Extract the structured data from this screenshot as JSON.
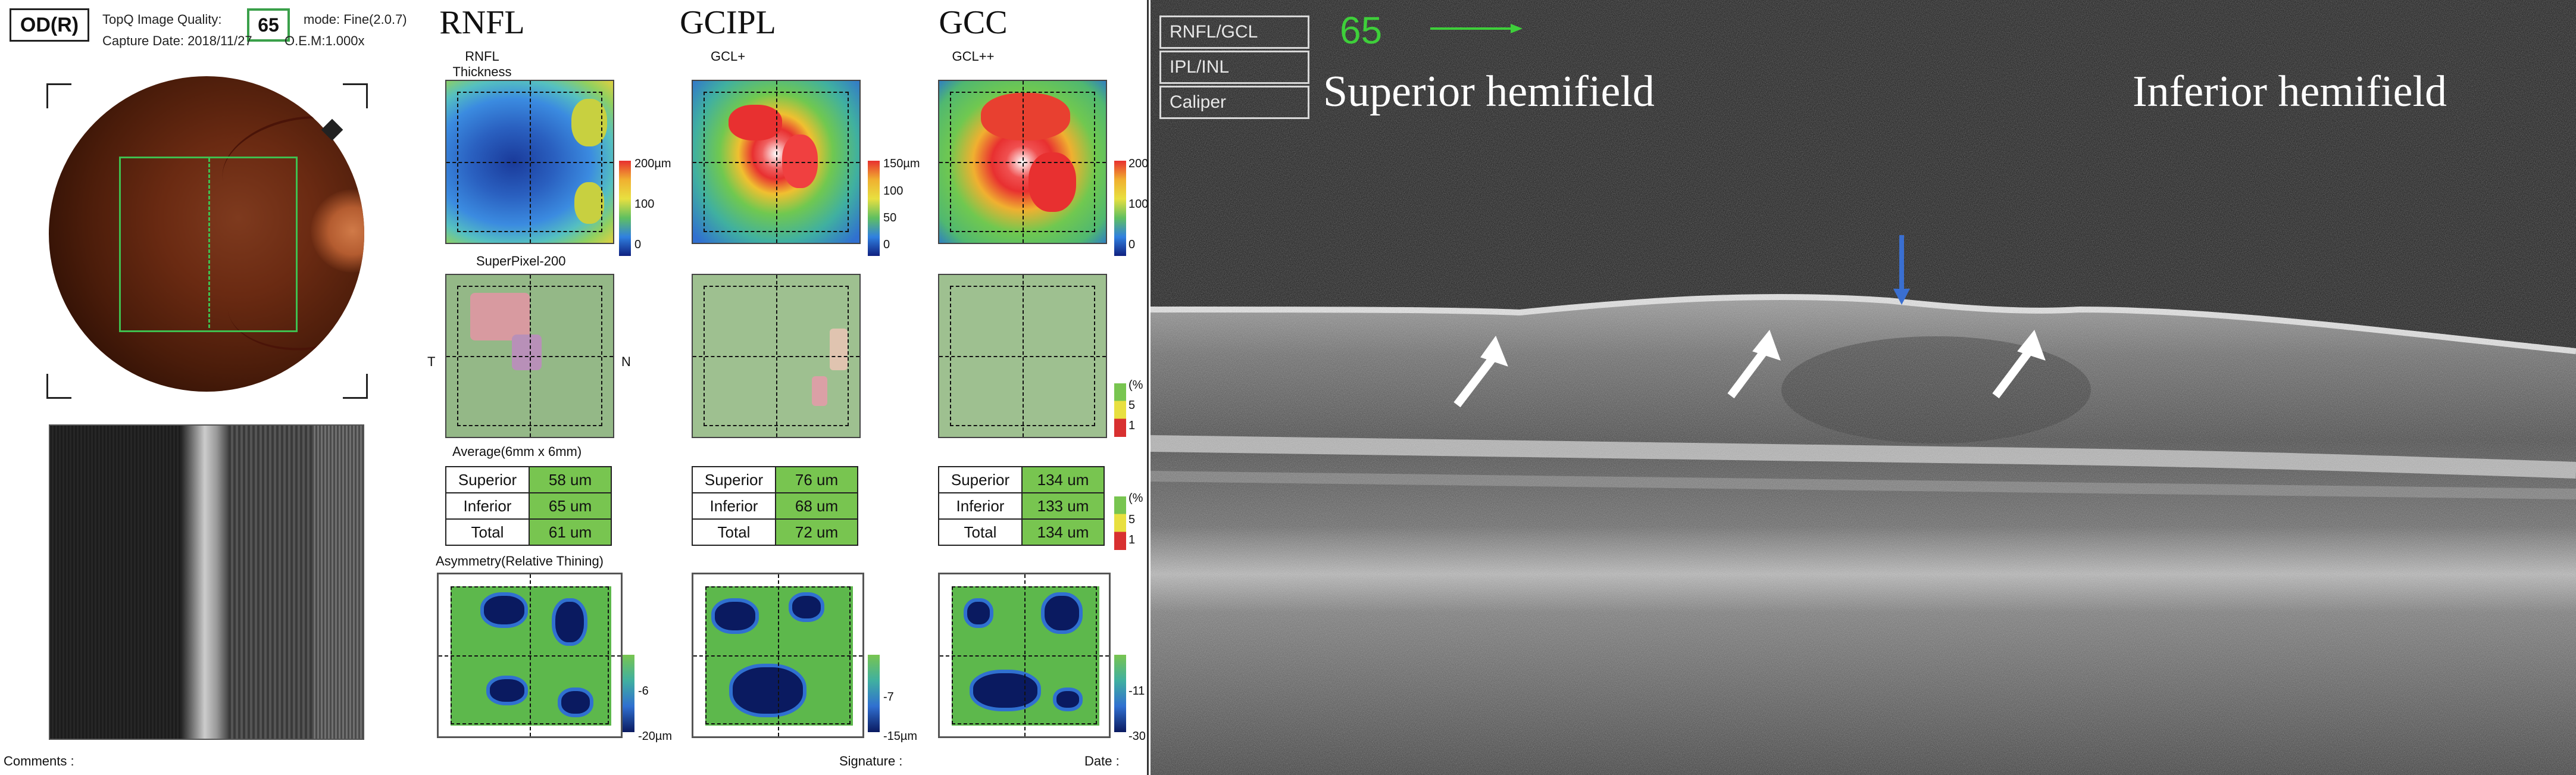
{
  "header": {
    "eye": "OD(R)",
    "quality_label": "TopQ Image Quality:",
    "quality_value": "65",
    "mode": "mode: Fine(2.0.7)",
    "capture": "Capture Date: 2018/11/27",
    "oem": "O.E.M:1.000x"
  },
  "columns": [
    {
      "title": "RNFL",
      "sub": "RNFL\nThickness",
      "scale": [
        "200µm",
        "100",
        "0"
      ]
    },
    {
      "title": "GCIPL",
      "sub": "GCL+",
      "scale": [
        "150µm",
        "100",
        "50",
        "0"
      ]
    },
    {
      "title": "GCC",
      "sub": "GCL++",
      "scale": [
        "200",
        "100",
        "0"
      ]
    }
  ],
  "superpixel": {
    "label": "SuperPixel-200",
    "t_label": "T",
    "n_label": "N",
    "legend": [
      "(%",
      "5",
      "1"
    ]
  },
  "average": {
    "label": "Average(6mm x 6mm)",
    "rows": [
      "Superior",
      "Inferior",
      "Total"
    ],
    "rnfl": [
      "58 um",
      "65 um",
      "61 um"
    ],
    "gcipl": [
      "76 um",
      "68 um",
      "72 um"
    ],
    "gcc": [
      "134 um",
      "133 um",
      "134 um"
    ]
  },
  "asymmetry": {
    "label": "Asymmetry(Relative Thining)",
    "scales": [
      [
        "-6",
        "-20µm"
      ],
      [
        "-7",
        "-15µm"
      ],
      [
        "-11",
        "-30"
      ]
    ]
  },
  "footer": {
    "comments": "Comments :",
    "signature": "Signature :",
    "date": "Date :"
  },
  "bscan": {
    "menu": [
      "RNFL/GCL",
      "IPL/INL",
      "Caliper"
    ],
    "quality": "65",
    "superior": "Superior hemifield",
    "inferior": "Inferior hemifield"
  },
  "colors": {
    "accent_green": "#3ecf3a",
    "value_cell": "#78c550",
    "blue_arrow": "#3a6fd1"
  }
}
